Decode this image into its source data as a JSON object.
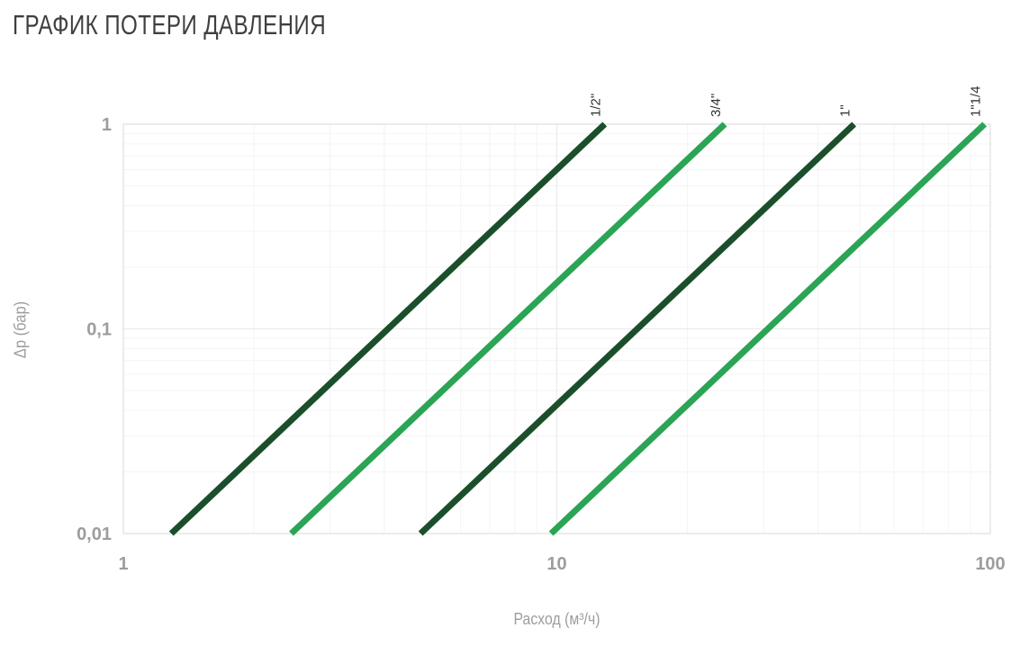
{
  "page": {
    "title": "ГРАФИК ПОТЕРИ ДАВЛЕНИЯ"
  },
  "colors": {
    "dark_green": "#1b4f2b",
    "bright_green": "#2ba455",
    "axis_text": "#9d9d9d",
    "title_text": "#3f3f3f",
    "series_label_text": "#333333",
    "plot_border": "#d9d9d9",
    "grid_minor": "#f4f4f4",
    "grid_major": "#e9e9e9",
    "background": "#ffffff"
  },
  "chart_data": {
    "type": "line",
    "title": "ГРАФИК ПОТЕРИ ДАВЛЕНИЯ",
    "xlabel": "Расход (м³/ч)",
    "ylabel": "Δp (бар)",
    "x_scale": "log",
    "y_scale": "log",
    "xlim": [
      1,
      100
    ],
    "ylim": [
      0.01,
      1
    ],
    "x_ticks": [
      {
        "label": "1",
        "value": 1
      },
      {
        "label": "10",
        "value": 10
      },
      {
        "label": "100",
        "value": 100
      }
    ],
    "y_ticks": [
      {
        "label": "1",
        "value": 1
      },
      {
        "label": "0,1",
        "value": 0.1
      },
      {
        "label": "0,01",
        "value": 0.01
      }
    ],
    "grid": "log minor grid on, light gray",
    "legend_position": "labels rotated above top end of each line",
    "series": [
      {
        "name": "1/2\"",
        "color": "#1b4f2b",
        "points": [
          {
            "x": 1.29,
            "y": 0.01
          },
          {
            "x": 12.9,
            "y": 1
          }
        ]
      },
      {
        "name": "3/4\"",
        "color": "#2ba455",
        "points": [
          {
            "x": 2.44,
            "y": 0.01
          },
          {
            "x": 24.4,
            "y": 1
          }
        ]
      },
      {
        "name": "1\"",
        "color": "#1b4f2b",
        "points": [
          {
            "x": 4.85,
            "y": 0.01
          },
          {
            "x": 48.5,
            "y": 1
          }
        ]
      },
      {
        "name": "1\"1/4",
        "color": "#2ba455",
        "points": [
          {
            "x": 9.7,
            "y": 0.01
          },
          {
            "x": 97,
            "y": 1
          }
        ]
      }
    ]
  }
}
